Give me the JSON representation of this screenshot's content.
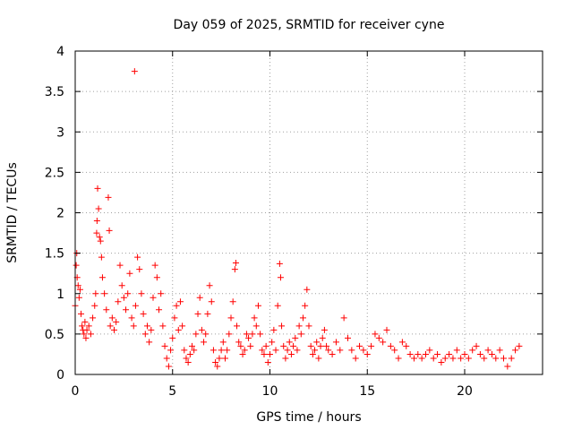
{
  "chart_data": {
    "type": "scatter",
    "title": "Day 059 of 2025, SRMTID for receiver cyne",
    "xlabel": "GPS time / hours",
    "ylabel": "SRMTID / TECUs",
    "xlim": [
      0,
      24
    ],
    "ylim": [
      0,
      4
    ],
    "xticks": [
      0,
      5,
      10,
      15,
      20
    ],
    "yticks": [
      0,
      0.5,
      1,
      1.5,
      2,
      2.5,
      3,
      3.5,
      4
    ],
    "grid": true,
    "marker": "+",
    "series": [
      {
        "name": "SRMTID",
        "color": "#ff0000",
        "points": [
          [
            0.0,
            0.85
          ],
          [
            0.05,
            1.35
          ],
          [
            0.08,
            1.5
          ],
          [
            0.1,
            1.2
          ],
          [
            0.15,
            1.1
          ],
          [
            0.2,
            0.95
          ],
          [
            0.25,
            1.05
          ],
          [
            0.3,
            0.75
          ],
          [
            0.35,
            0.6
          ],
          [
            0.4,
            0.55
          ],
          [
            0.45,
            0.5
          ],
          [
            0.5,
            0.65
          ],
          [
            0.55,
            0.45
          ],
          [
            0.6,
            0.55
          ],
          [
            0.7,
            0.6
          ],
          [
            0.8,
            0.5
          ],
          [
            0.9,
            0.7
          ],
          [
            1.0,
            0.85
          ],
          [
            1.05,
            1.0
          ],
          [
            1.1,
            1.75
          ],
          [
            1.12,
            1.9
          ],
          [
            1.15,
            2.3
          ],
          [
            1.2,
            2.05
          ],
          [
            1.25,
            1.7
          ],
          [
            1.3,
            1.65
          ],
          [
            1.35,
            1.45
          ],
          [
            1.4,
            1.2
          ],
          [
            1.5,
            1.0
          ],
          [
            1.6,
            0.8
          ],
          [
            1.7,
            2.19
          ],
          [
            1.75,
            1.78
          ],
          [
            1.8,
            0.6
          ],
          [
            1.9,
            0.7
          ],
          [
            2.0,
            0.55
          ],
          [
            2.1,
            0.65
          ],
          [
            2.2,
            0.9
          ],
          [
            2.3,
            1.35
          ],
          [
            2.4,
            1.1
          ],
          [
            2.5,
            0.95
          ],
          [
            2.6,
            0.8
          ],
          [
            2.7,
            1.0
          ],
          [
            2.8,
            1.25
          ],
          [
            2.9,
            0.7
          ],
          [
            3.0,
            0.6
          ],
          [
            3.05,
            3.75
          ],
          [
            3.1,
            0.85
          ],
          [
            3.2,
            1.45
          ],
          [
            3.3,
            1.3
          ],
          [
            3.4,
            1.0
          ],
          [
            3.5,
            0.75
          ],
          [
            3.6,
            0.5
          ],
          [
            3.7,
            0.6
          ],
          [
            3.8,
            0.4
          ],
          [
            3.9,
            0.55
          ],
          [
            4.0,
            0.95
          ],
          [
            4.1,
            1.35
          ],
          [
            4.2,
            1.2
          ],
          [
            4.3,
            0.8
          ],
          [
            4.4,
            1.0
          ],
          [
            4.5,
            0.6
          ],
          [
            4.6,
            0.35
          ],
          [
            4.7,
            0.2
          ],
          [
            4.8,
            0.1
          ],
          [
            4.9,
            0.3
          ],
          [
            5.0,
            0.45
          ],
          [
            5.1,
            0.7
          ],
          [
            5.2,
            0.85
          ],
          [
            5.3,
            0.55
          ],
          [
            5.4,
            0.9
          ],
          [
            5.5,
            0.6
          ],
          [
            5.6,
            0.3
          ],
          [
            5.7,
            0.2
          ],
          [
            5.8,
            0.15
          ],
          [
            5.9,
            0.25
          ],
          [
            6.0,
            0.35
          ],
          [
            6.1,
            0.3
          ],
          [
            6.2,
            0.5
          ],
          [
            6.3,
            0.75
          ],
          [
            6.4,
            0.95
          ],
          [
            6.5,
            0.55
          ],
          [
            6.6,
            0.4
          ],
          [
            6.7,
            0.5
          ],
          [
            6.8,
            0.75
          ],
          [
            6.9,
            1.1
          ],
          [
            7.0,
            0.9
          ],
          [
            7.1,
            0.3
          ],
          [
            7.2,
            0.15
          ],
          [
            7.3,
            0.1
          ],
          [
            7.4,
            0.2
          ],
          [
            7.5,
            0.3
          ],
          [
            7.6,
            0.4
          ],
          [
            7.7,
            0.2
          ],
          [
            7.8,
            0.3
          ],
          [
            7.9,
            0.5
          ],
          [
            8.0,
            0.7
          ],
          [
            8.1,
            0.9
          ],
          [
            8.2,
            1.3
          ],
          [
            8.25,
            1.38
          ],
          [
            8.3,
            0.6
          ],
          [
            8.4,
            0.4
          ],
          [
            8.5,
            0.35
          ],
          [
            8.6,
            0.25
          ],
          [
            8.7,
            0.3
          ],
          [
            8.8,
            0.5
          ],
          [
            8.9,
            0.45
          ],
          [
            9.0,
            0.35
          ],
          [
            9.1,
            0.5
          ],
          [
            9.2,
            0.7
          ],
          [
            9.3,
            0.6
          ],
          [
            9.4,
            0.85
          ],
          [
            9.5,
            0.5
          ],
          [
            9.6,
            0.3
          ],
          [
            9.7,
            0.25
          ],
          [
            9.8,
            0.35
          ],
          [
            9.9,
            0.15
          ],
          [
            10.0,
            0.25
          ],
          [
            10.1,
            0.4
          ],
          [
            10.2,
            0.55
          ],
          [
            10.3,
            0.3
          ],
          [
            10.4,
            0.85
          ],
          [
            10.5,
            1.37
          ],
          [
            10.55,
            1.2
          ],
          [
            10.6,
            0.6
          ],
          [
            10.7,
            0.35
          ],
          [
            10.8,
            0.2
          ],
          [
            10.9,
            0.3
          ],
          [
            11.0,
            0.4
          ],
          [
            11.1,
            0.25
          ],
          [
            11.2,
            0.35
          ],
          [
            11.3,
            0.45
          ],
          [
            11.4,
            0.3
          ],
          [
            11.5,
            0.6
          ],
          [
            11.6,
            0.5
          ],
          [
            11.7,
            0.7
          ],
          [
            11.8,
            0.85
          ],
          [
            11.9,
            1.05
          ],
          [
            12.0,
            0.6
          ],
          [
            12.1,
            0.35
          ],
          [
            12.2,
            0.25
          ],
          [
            12.3,
            0.3
          ],
          [
            12.4,
            0.4
          ],
          [
            12.5,
            0.2
          ],
          [
            12.6,
            0.35
          ],
          [
            12.7,
            0.45
          ],
          [
            12.8,
            0.55
          ],
          [
            12.9,
            0.35
          ],
          [
            13.0,
            0.3
          ],
          [
            13.2,
            0.25
          ],
          [
            13.4,
            0.4
          ],
          [
            13.6,
            0.3
          ],
          [
            13.8,
            0.7
          ],
          [
            14.0,
            0.45
          ],
          [
            14.2,
            0.3
          ],
          [
            14.4,
            0.2
          ],
          [
            14.6,
            0.35
          ],
          [
            14.8,
            0.3
          ],
          [
            15.0,
            0.25
          ],
          [
            15.2,
            0.35
          ],
          [
            15.4,
            0.5
          ],
          [
            15.6,
            0.45
          ],
          [
            15.8,
            0.4
          ],
          [
            16.0,
            0.55
          ],
          [
            16.2,
            0.35
          ],
          [
            16.4,
            0.3
          ],
          [
            16.6,
            0.2
          ],
          [
            16.8,
            0.4
          ],
          [
            17.0,
            0.35
          ],
          [
            17.2,
            0.25
          ],
          [
            17.4,
            0.2
          ],
          [
            17.6,
            0.25
          ],
          [
            17.8,
            0.2
          ],
          [
            18.0,
            0.25
          ],
          [
            18.2,
            0.3
          ],
          [
            18.4,
            0.2
          ],
          [
            18.6,
            0.25
          ],
          [
            18.8,
            0.15
          ],
          [
            19.0,
            0.2
          ],
          [
            19.2,
            0.25
          ],
          [
            19.4,
            0.2
          ],
          [
            19.6,
            0.3
          ],
          [
            19.8,
            0.2
          ],
          [
            20.0,
            0.25
          ],
          [
            20.2,
            0.2
          ],
          [
            20.4,
            0.3
          ],
          [
            20.6,
            0.35
          ],
          [
            20.8,
            0.25
          ],
          [
            21.0,
            0.2
          ],
          [
            21.2,
            0.3
          ],
          [
            21.4,
            0.25
          ],
          [
            21.6,
            0.2
          ],
          [
            21.8,
            0.3
          ],
          [
            22.0,
            0.2
          ],
          [
            22.2,
            0.1
          ],
          [
            22.4,
            0.2
          ],
          [
            22.6,
            0.3
          ],
          [
            22.8,
            0.35
          ]
        ]
      }
    ]
  }
}
